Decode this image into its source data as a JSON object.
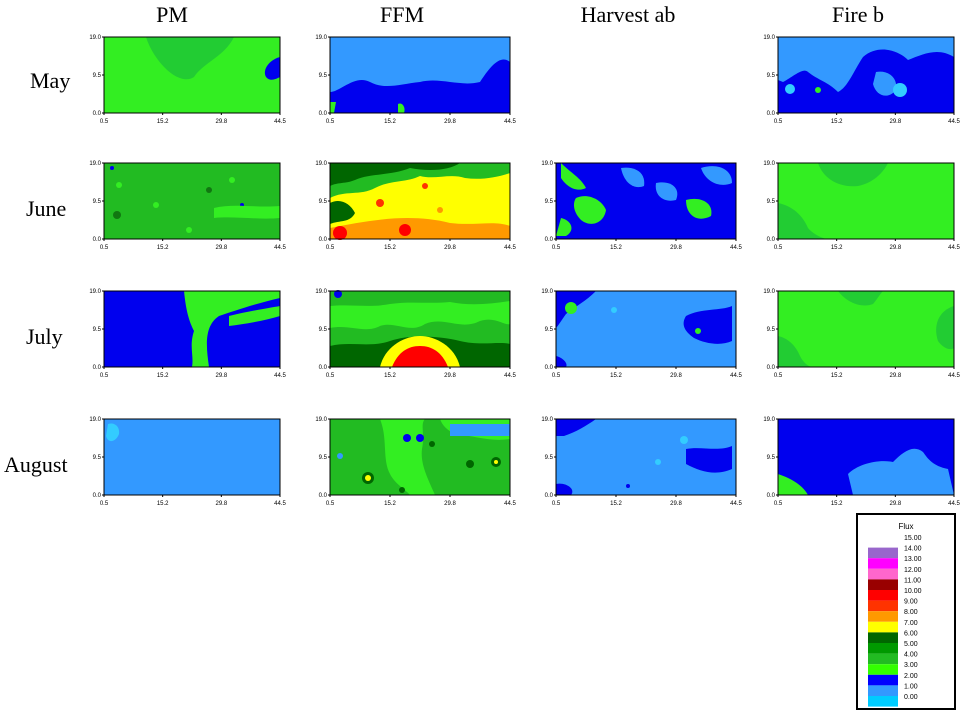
{
  "columns": [
    "PM",
    "FFM",
    "Harvest ab",
    "Fire b"
  ],
  "rows": [
    "May",
    "June",
    "July",
    "August"
  ],
  "chart_data": [
    {
      "type": "heatmap",
      "description_axes": "contour maps of flux; x axis ticks and y axis ticks shared",
      "xticks": [
        "0.5",
        "15.2",
        "29.8",
        "44.5"
      ],
      "yticks": [
        "0.0",
        "9.5",
        "19.0"
      ],
      "xlim": [
        0.5,
        44.5
      ],
      "ylim": [
        0.0,
        19.0
      ],
      "legend": {
        "title": "Flux",
        "levels": [
          "15.00",
          "14.00",
          "13.00",
          "12.00",
          "11.00",
          "10.00",
          "9.00",
          "8.00",
          "7.00",
          "6.00",
          "5.00",
          "4.00",
          "3.00",
          "2.00",
          "1.00",
          "0.00"
        ],
        "colors": [
          "#ffffff",
          "#9966cc",
          "#ff00ff",
          "#ff66cc",
          "#990000",
          "#ff0000",
          "#ff3300",
          "#ff9900",
          "#ffff00",
          "#006600",
          "#009900",
          "#22bb22",
          "#33ff00",
          "#0000ff",
          "#3399ff",
          "#00ccff"
        ]
      },
      "panels": [
        {
          "row": "May",
          "column": "PM",
          "dominant_level": "3.00-4.00"
        },
        {
          "row": "May",
          "column": "FFM",
          "dominant_level": "1.00-2.00"
        },
        {
          "row": "May",
          "column": "Fire b",
          "dominant_level": "1.00-2.00"
        },
        {
          "row": "June",
          "column": "PM",
          "dominant_level": "4.00-5.00"
        },
        {
          "row": "June",
          "column": "FFM",
          "dominant_level": "7.00-8.00"
        },
        {
          "row": "June",
          "column": "Harvest ab",
          "dominant_level": "1.00-2.00"
        },
        {
          "row": "June",
          "column": "Fire b",
          "dominant_level": "3.00-4.00"
        },
        {
          "row": "July",
          "column": "PM",
          "dominant_level": "1.00-2.00"
        },
        {
          "row": "July",
          "column": "FFM",
          "dominant_level": "4.00-5.00"
        },
        {
          "row": "July",
          "column": "Harvest ab",
          "dominant_level": "0.00-1.00"
        },
        {
          "row": "July",
          "column": "Fire b",
          "dominant_level": "3.00-4.00"
        },
        {
          "row": "August",
          "column": "PM",
          "dominant_level": "0.00-1.00"
        },
        {
          "row": "August",
          "column": "FFM",
          "dominant_level": "4.00-5.00"
        },
        {
          "row": "August",
          "column": "Harvest ab",
          "dominant_level": "0.00-1.00"
        },
        {
          "row": "August",
          "column": "Fire b",
          "dominant_level": "1.00-2.00"
        }
      ]
    }
  ]
}
